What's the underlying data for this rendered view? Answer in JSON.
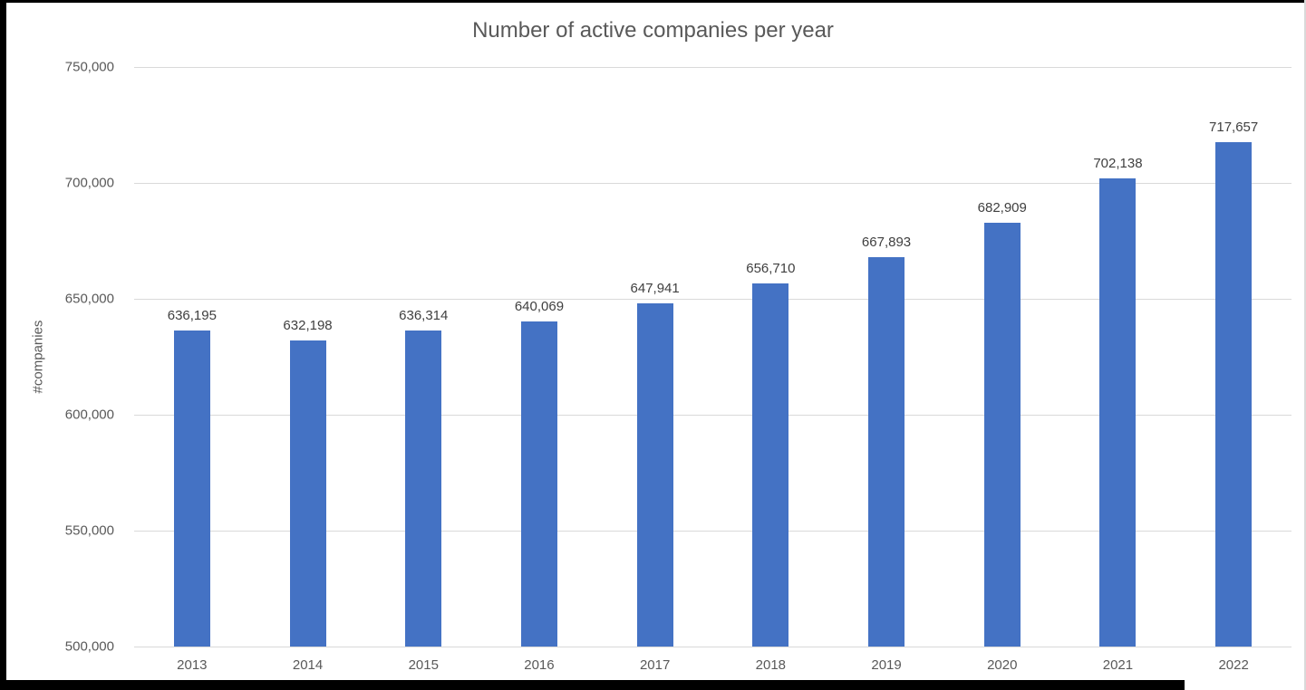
{
  "chart_data": {
    "type": "bar",
    "title": "Number of active companies per year",
    "xlabel": "",
    "ylabel": "#companies",
    "categories": [
      "2013",
      "2014",
      "2015",
      "2016",
      "2017",
      "2018",
      "2019",
      "2020",
      "2021",
      "2022"
    ],
    "values": [
      636195,
      632198,
      636314,
      640069,
      647941,
      656710,
      667893,
      682909,
      702138,
      717657
    ],
    "value_labels": [
      "636,195",
      "632,198",
      "636,314",
      "640,069",
      "647,941",
      "656,710",
      "667,893",
      "682,909",
      "702,138",
      "717,657"
    ],
    "ylim": [
      500000,
      750000
    ],
    "ytick_interval": 50000,
    "ytick_labels": [
      "750,000",
      "700,000",
      "650,000",
      "600,000",
      "550,000",
      "500,000"
    ],
    "grid": true,
    "legend": "none",
    "colors": {
      "bar": "#4472c4",
      "gridline": "#d9d9d9",
      "axis_text": "#595959",
      "data_label_text": "#404040",
      "title_text": "#595959",
      "background": "#ffffff"
    }
  }
}
